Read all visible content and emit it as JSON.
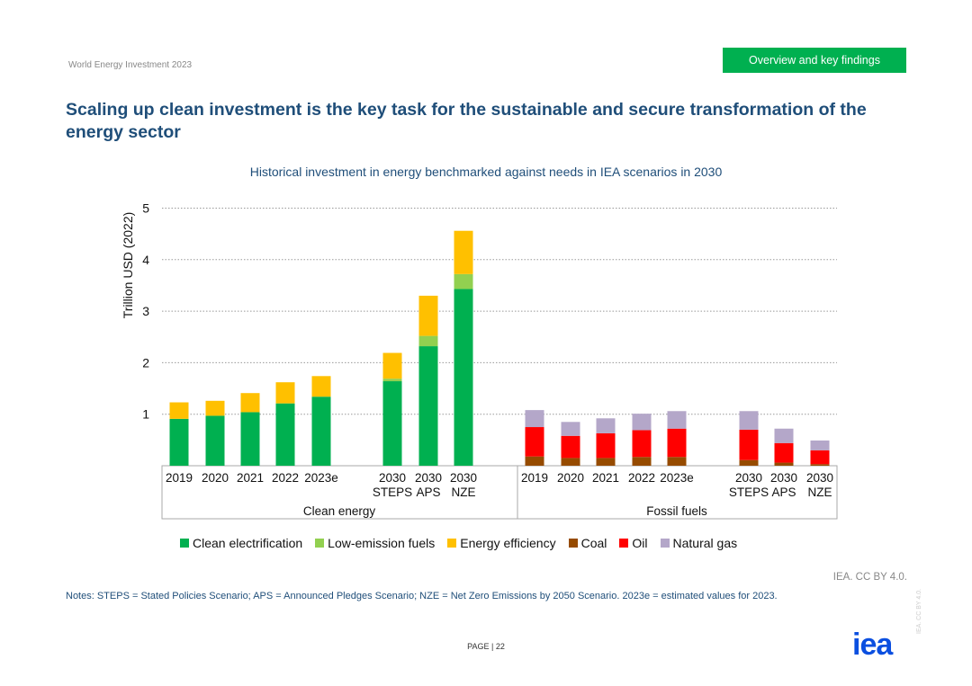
{
  "header": {
    "doc_title": "World Energy Investment 2023",
    "section_badge": "Overview and key findings"
  },
  "page_title": "Scaling up clean investment is the key task for the sustainable and secure transformation of the energy sector",
  "chart_data": {
    "type": "bar",
    "stacked": true,
    "title": "Historical investment in energy benchmarked against needs in IEA scenarios in 2030",
    "ylabel": "Trillion USD (2022)",
    "ylim": [
      0,
      5
    ],
    "yticks": [
      1,
      2,
      3,
      4,
      5
    ],
    "grid": true,
    "groups": [
      {
        "name": "Clean energy",
        "categories": [
          "2019",
          "2020",
          "2021",
          "2022",
          "2023e",
          "2030 STEPS",
          "2030 APS",
          "2030 NZE"
        ],
        "series": [
          {
            "name": "Clean electrification",
            "color": "#00b050",
            "values": [
              0.91,
              0.97,
              1.04,
              1.21,
              1.34,
              1.64,
              2.32,
              3.43
            ]
          },
          {
            "name": "Low-emission fuels",
            "color": "#92d050",
            "values": [
              0,
              0,
              0,
              0,
              0,
              0.05,
              0.2,
              0.29
            ]
          },
          {
            "name": "Energy efficiency",
            "color": "#ffc000",
            "values": [
              0.32,
              0.29,
              0.37,
              0.41,
              0.4,
              0.5,
              0.78,
              0.84
            ]
          }
        ]
      },
      {
        "name": "Fossil fuels",
        "categories": [
          "2019",
          "2020",
          "2021",
          "2022",
          "2023e",
          "2030 STEPS",
          "2030 APS",
          "2030 NZE"
        ],
        "series": [
          {
            "name": "Coal",
            "color": "#964b00",
            "values": [
              0.18,
              0.15,
              0.15,
              0.17,
              0.17,
              0.11,
              0.06,
              0.03
            ]
          },
          {
            "name": "Oil",
            "color": "#ff0000",
            "values": [
              0.57,
              0.43,
              0.48,
              0.52,
              0.55,
              0.59,
              0.38,
              0.27
            ]
          },
          {
            "name": "Natural gas",
            "color": "#b4a7c9",
            "values": [
              0.33,
              0.27,
              0.29,
              0.32,
              0.34,
              0.36,
              0.28,
              0.19
            ]
          }
        ]
      }
    ],
    "legend": [
      "Clean electrification",
      "Low-emission fuels",
      "Energy efficiency",
      "Coal",
      "Oil",
      "Natural gas"
    ],
    "legend_position": "bottom"
  },
  "source": "IEA. CC BY 4.0.",
  "notes": "Notes: STEPS = Stated Policies Scenario; APS = Announced Pledges Scenario; NZE = Net Zero Emissions by 2050 Scenario. 2023e = estimated values for 2023.",
  "footer": {
    "page_label": "PAGE | 22",
    "logo": "iea",
    "vertical_credit": "IEA. CC BY 4.0."
  }
}
